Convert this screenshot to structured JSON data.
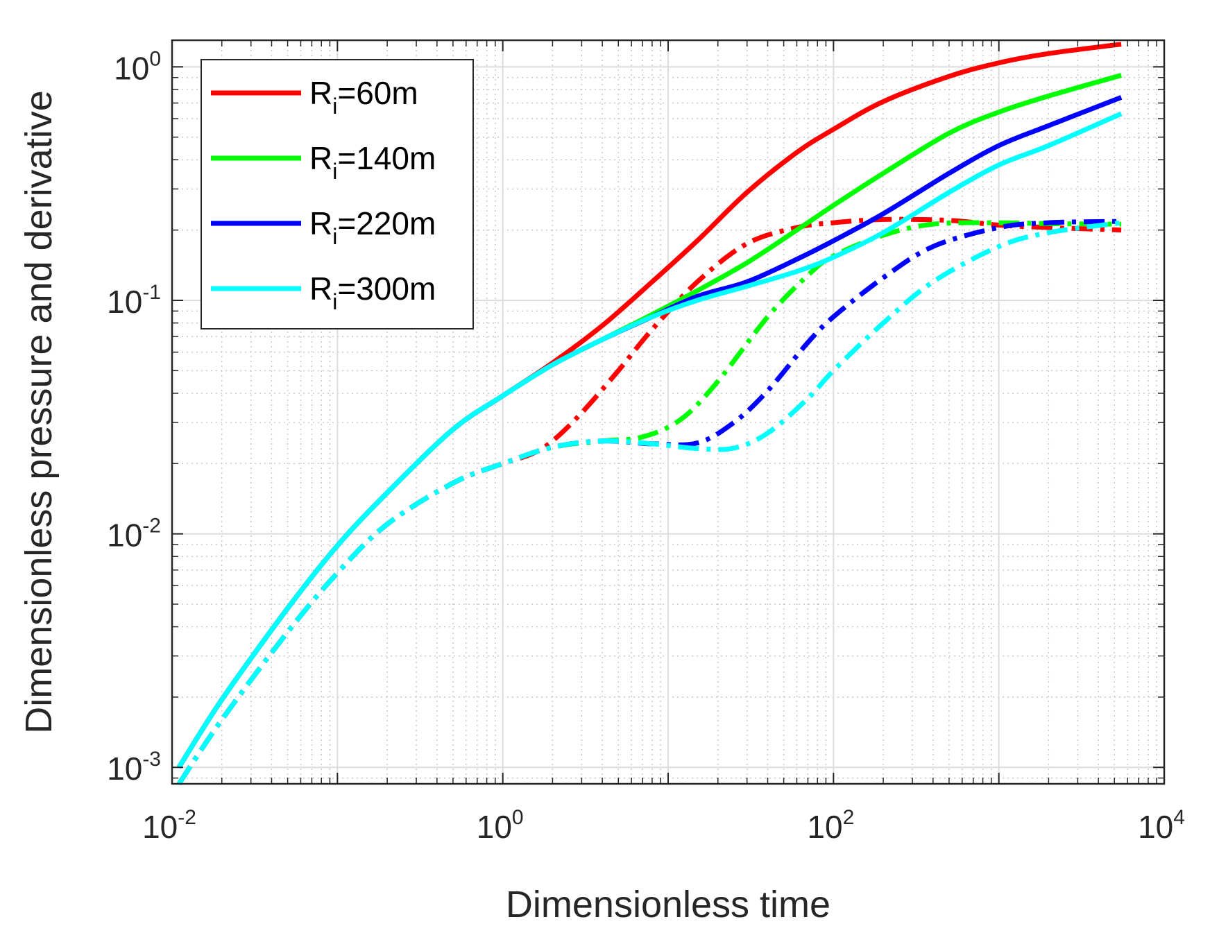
{
  "chart_data": {
    "type": "line",
    "xscale": "log",
    "yscale": "log",
    "xlim": [
      0.01,
      10000
    ],
    "ylim": [
      0.00085,
      1.3
    ],
    "xlabel": "Dimensionless time",
    "ylabel": "Dimensionless pressure and derivative",
    "grid": true,
    "legend_position": "top-left",
    "x_ticks": [
      {
        "value": 0.01,
        "base": "10",
        "exp": "-2"
      },
      {
        "value": 1,
        "base": "10",
        "exp": "0"
      },
      {
        "value": 100,
        "base": "10",
        "exp": "2"
      },
      {
        "value": 10000,
        "base": "10",
        "exp": "4"
      }
    ],
    "y_ticks": [
      {
        "value": 0.001,
        "base": "10",
        "exp": "-3"
      },
      {
        "value": 0.01,
        "base": "10",
        "exp": "-2"
      },
      {
        "value": 0.1,
        "base": "10",
        "exp": "-1"
      },
      {
        "value": 1,
        "base": "10",
        "exp": "0"
      }
    ],
    "legend": [
      {
        "main": "R",
        "sub": "i",
        "rest": "=60m",
        "color": "#ff0000"
      },
      {
        "main": "R",
        "sub": "i",
        "rest": "=140m",
        "color": "#00ff00"
      },
      {
        "main": "R",
        "sub": "i",
        "rest": "=220m",
        "color": "#0000ff"
      },
      {
        "main": "R",
        "sub": "i",
        "rest": "=300m",
        "color": "#00ffff"
      }
    ],
    "series": [
      {
        "name": "Ri=60m pressure",
        "color": "#ff0000",
        "style": "solid",
        "x": [
          0.011,
          0.02,
          0.05,
          0.1,
          0.2,
          0.5,
          1,
          2,
          4,
          8,
          15,
          30,
          60,
          100,
          200,
          500,
          1000,
          2000,
          5500
        ],
        "y": [
          0.001,
          0.00195,
          0.0048,
          0.0089,
          0.015,
          0.028,
          0.039,
          0.054,
          0.078,
          0.12,
          0.18,
          0.29,
          0.43,
          0.54,
          0.71,
          0.91,
          1.04,
          1.14,
          1.25
        ]
      },
      {
        "name": "Ri=140m pressure",
        "color": "#00ff00",
        "style": "solid",
        "x": [
          0.011,
          0.02,
          0.05,
          0.1,
          0.2,
          0.5,
          1,
          2,
          4,
          8,
          15,
          30,
          60,
          100,
          200,
          500,
          1000,
          2000,
          5500
        ],
        "y": [
          0.001,
          0.00195,
          0.0048,
          0.0089,
          0.015,
          0.028,
          0.039,
          0.053,
          0.068,
          0.087,
          0.11,
          0.145,
          0.2,
          0.255,
          0.35,
          0.52,
          0.64,
          0.75,
          0.92
        ]
      },
      {
        "name": "Ri=220m pressure",
        "color": "#0000ff",
        "style": "solid",
        "x": [
          0.011,
          0.02,
          0.05,
          0.1,
          0.2,
          0.5,
          1,
          2,
          4,
          8,
          15,
          30,
          60,
          100,
          200,
          500,
          1000,
          2000,
          5500
        ],
        "y": [
          0.001,
          0.00195,
          0.0048,
          0.0089,
          0.015,
          0.028,
          0.039,
          0.053,
          0.068,
          0.085,
          0.104,
          0.12,
          0.15,
          0.18,
          0.235,
          0.35,
          0.46,
          0.56,
          0.74
        ]
      },
      {
        "name": "Ri=300m pressure",
        "color": "#00ffff",
        "style": "solid",
        "x": [
          0.011,
          0.02,
          0.05,
          0.1,
          0.2,
          0.5,
          1,
          2,
          4,
          8,
          15,
          30,
          60,
          100,
          200,
          500,
          1000,
          2000,
          5500
        ],
        "y": [
          0.001,
          0.00195,
          0.0048,
          0.0089,
          0.015,
          0.028,
          0.039,
          0.053,
          0.068,
          0.085,
          0.1,
          0.115,
          0.133,
          0.153,
          0.195,
          0.29,
          0.38,
          0.46,
          0.63
        ]
      },
      {
        "name": "Ri=60m derivative",
        "color": "#ff0000",
        "style": "dashdot",
        "x": [
          0.011,
          0.02,
          0.05,
          0.1,
          0.2,
          0.5,
          1,
          1.5,
          2,
          3,
          5,
          8,
          15,
          30,
          60,
          100,
          200,
          500,
          1000,
          2000,
          5500
        ],
        "y": [
          0.00085,
          0.0016,
          0.0038,
          0.0068,
          0.011,
          0.0165,
          0.02,
          0.022,
          0.025,
          0.033,
          0.05,
          0.075,
          0.12,
          0.175,
          0.205,
          0.215,
          0.222,
          0.22,
          0.21,
          0.205,
          0.2
        ]
      },
      {
        "name": "Ri=140m derivative",
        "color": "#00ff00",
        "style": "dashdot",
        "x": [
          0.011,
          0.02,
          0.05,
          0.1,
          0.2,
          0.5,
          1,
          2,
          4,
          7,
          12,
          20,
          40,
          70,
          100,
          200,
          400,
          1000,
          2000,
          5500
        ],
        "y": [
          0.00085,
          0.0016,
          0.0038,
          0.0068,
          0.011,
          0.0165,
          0.02,
          0.0235,
          0.025,
          0.026,
          0.031,
          0.045,
          0.085,
          0.128,
          0.155,
          0.19,
          0.212,
          0.215,
          0.213,
          0.212
        ]
      },
      {
        "name": "Ri=220m derivative",
        "color": "#0000ff",
        "style": "dashdot",
        "x": [
          0.011,
          0.02,
          0.05,
          0.1,
          0.2,
          0.5,
          1,
          2,
          4,
          8,
          15,
          25,
          40,
          70,
          100,
          200,
          400,
          1000,
          2000,
          5500
        ],
        "y": [
          0.00085,
          0.0016,
          0.0038,
          0.0068,
          0.011,
          0.0165,
          0.02,
          0.0235,
          0.025,
          0.0243,
          0.0245,
          0.03,
          0.041,
          0.066,
          0.085,
          0.125,
          0.17,
          0.205,
          0.215,
          0.218
        ]
      },
      {
        "name": "Ri=300m derivative",
        "color": "#00ffff",
        "style": "dashdot",
        "x": [
          0.011,
          0.02,
          0.05,
          0.1,
          0.2,
          0.5,
          1,
          2,
          4,
          8,
          15,
          25,
          40,
          70,
          100,
          200,
          400,
          1000,
          2000,
          5500
        ],
        "y": [
          0.00085,
          0.0016,
          0.0038,
          0.0068,
          0.011,
          0.0165,
          0.02,
          0.0235,
          0.025,
          0.0243,
          0.0232,
          0.0233,
          0.027,
          0.038,
          0.05,
          0.08,
          0.12,
          0.17,
          0.195,
          0.215
        ]
      }
    ]
  }
}
